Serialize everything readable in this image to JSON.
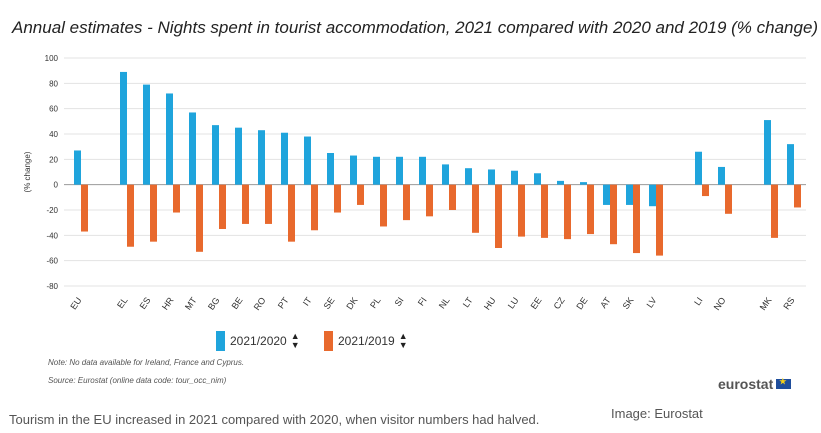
{
  "chart_data": {
    "type": "bar",
    "title": "Annual estimates - Nights spent in tourist accommodation, 2021 compared with 2020 and 2019 (% change)",
    "ylabel": "(% change)",
    "ylim": [
      -80,
      100
    ],
    "yticks": [
      -80,
      -60,
      -40,
      -20,
      0,
      20,
      40,
      60,
      80,
      100
    ],
    "grid": true,
    "legend_position": "bottom-center",
    "categories": [
      "EU",
      "EL",
      "ES",
      "HR",
      "MT",
      "BG",
      "BE",
      "RO",
      "PT",
      "IT",
      "SE",
      "DK",
      "PL",
      "SI",
      "FI",
      "NL",
      "LT",
      "HU",
      "LU",
      "EE",
      "CZ",
      "DE",
      "AT",
      "SK",
      "LV",
      "LI",
      "NO",
      "MK",
      "RS"
    ],
    "series": [
      {
        "name": "2021/2020",
        "color": "#1fa4dc",
        "values": [
          27,
          89,
          79,
          72,
          57,
          47,
          45,
          43,
          41,
          38,
          25,
          23,
          22,
          22,
          22,
          16,
          13,
          12,
          11,
          9,
          3,
          2,
          -16,
          -16,
          -17,
          26,
          14,
          51,
          32
        ]
      },
      {
        "name": "2021/2019",
        "color": "#e8692d",
        "values": [
          -37,
          -49,
          -45,
          -22,
          -53,
          -35,
          -31,
          -31,
          -45,
          -36,
          -22,
          -16,
          -33,
          -28,
          -25,
          -20,
          -38,
          -50,
          -41,
          -42,
          -43,
          -39,
          -47,
          -54,
          -56,
          -9,
          -23,
          -42,
          -18
        ]
      }
    ]
  },
  "legend": {
    "item1": "2021/2020",
    "item2": "2021/2019",
    "sort_icon": "sort-arrows-icon"
  },
  "notes": {
    "note": "Note: No data available for Ireland, France and Cyprus.",
    "source": "Source: Eurostat (online data code: tour_occ_nim)"
  },
  "logo": {
    "text": "eurostat",
    "icon": "eu-flag-icon"
  },
  "caption": {
    "text": "Tourism in the EU increased in 2021 compared with 2020, when visitor numbers had halved.",
    "credit": "Image: Eurostat"
  }
}
